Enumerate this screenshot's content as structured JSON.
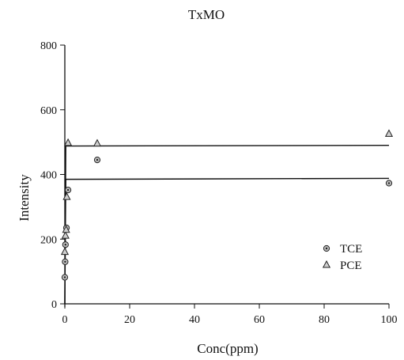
{
  "chart_data": {
    "type": "scatter",
    "title": "TxMO",
    "xlabel": "Conc(ppm)",
    "ylabel": "Intensity",
    "xlim": [
      0,
      100
    ],
    "ylim": [
      0,
      800
    ],
    "xticks": [
      0,
      20,
      40,
      60,
      80,
      100
    ],
    "yticks": [
      0,
      200,
      400,
      600,
      800
    ],
    "grid": false,
    "legend_position": "bottom-right",
    "series": [
      {
        "name": "TCE",
        "marker": "circle",
        "points": [
          [
            0,
            82
          ],
          [
            0.1,
            130
          ],
          [
            0.2,
            183
          ],
          [
            0.5,
            235
          ],
          [
            1,
            352
          ],
          [
            10,
            445
          ],
          [
            100,
            373
          ]
        ],
        "fit_line": [
          [
            0,
            0
          ],
          [
            0.3,
            385
          ],
          [
            100,
            388
          ]
        ]
      },
      {
        "name": "PCE",
        "marker": "triangle",
        "points": [
          [
            0,
            160
          ],
          [
            0.2,
            210
          ],
          [
            0.4,
            228
          ],
          [
            0.6,
            330
          ],
          [
            1,
            497
          ],
          [
            10,
            495
          ],
          [
            100,
            525
          ]
        ],
        "fit_line": [
          [
            0,
            0
          ],
          [
            0.3,
            488
          ],
          [
            100,
            490
          ]
        ]
      }
    ]
  }
}
